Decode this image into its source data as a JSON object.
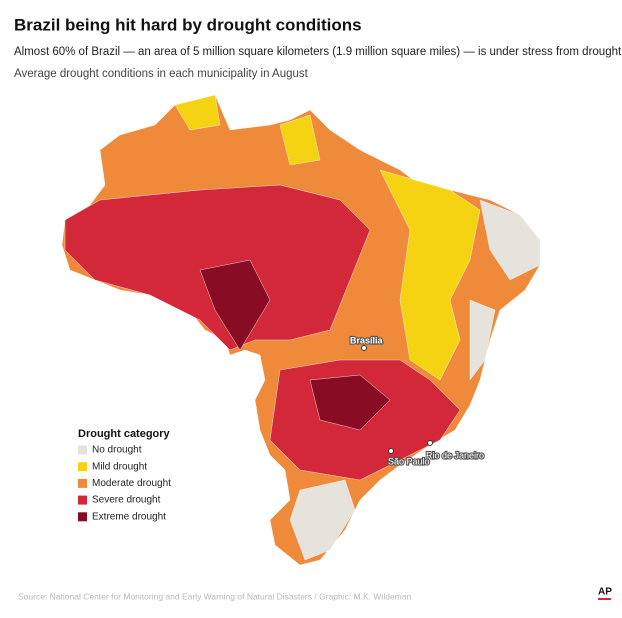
{
  "header": {
    "title": "Brazil being hit hard by drought conditions",
    "subtitle": "Almost 60% of Brazil — an area of 5 million square kilometers (1.9 million square miles) — is under stress from drought.",
    "description": "Average drought conditions in each municipality in August"
  },
  "legend": {
    "title": "Drought category",
    "items": [
      {
        "label": "No drought",
        "color": "#e6e2dc"
      },
      {
        "label": "Mild drought",
        "color": "#f6d312"
      },
      {
        "label": "Moderate drought",
        "color": "#ef8a3a"
      },
      {
        "label": "Severe drought",
        "color": "#d2283a"
      },
      {
        "label": "Extreme drought",
        "color": "#870c24"
      }
    ]
  },
  "cities": [
    {
      "name": "Brasília"
    },
    {
      "name": "São Paulo"
    },
    {
      "name": "Rio de Janeiro"
    }
  ],
  "source": "Source: National Center for Monitoring and Early Warning of Natural Disasters / Graphic: M.K. Wildeman",
  "logo": "AP"
}
